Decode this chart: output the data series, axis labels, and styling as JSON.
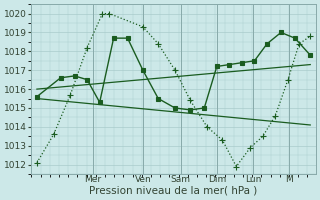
{
  "background_color": "#cce8e8",
  "grid_color": "#aacccc",
  "line_color": "#1a5c20",
  "ylim": [
    1011.5,
    1020.5
  ],
  "yticks": [
    1012,
    1013,
    1014,
    1015,
    1016,
    1017,
    1018,
    1019,
    1020
  ],
  "xlabel": "Pression niveau de la mer( hPa )",
  "xlabel_fontsize": 7.5,
  "tick_fontsize": 6.5,
  "day_labels": [
    "Mer",
    "Ven",
    "Sam",
    "Dim",
    "Lun",
    "M"
  ],
  "day_positions": [
    0.22,
    0.4,
    0.535,
    0.665,
    0.795,
    0.925
  ],
  "series": [
    {
      "x": [
        0.02,
        0.08,
        0.14,
        0.2,
        0.255,
        0.28,
        0.4,
        0.455,
        0.515,
        0.57,
        0.63,
        0.685,
        0.735,
        0.785,
        0.83,
        0.875,
        0.92,
        0.96,
        1.0
      ],
      "y": [
        1012.1,
        1013.6,
        1015.7,
        1018.2,
        1020.0,
        1020.0,
        1019.3,
        1018.4,
        1017.0,
        1015.4,
        1014.0,
        1013.3,
        1011.9,
        1012.9,
        1013.5,
        1014.6,
        1016.5,
        1018.4,
        1018.8
      ],
      "marker": "+",
      "markersize": 4,
      "linewidth": 0.9,
      "linestyle": ":"
    },
    {
      "x": [
        0.02,
        0.105,
        0.155,
        0.2,
        0.245,
        0.295,
        0.345,
        0.4,
        0.455,
        0.515,
        0.57,
        0.62,
        0.665,
        0.71,
        0.755,
        0.8,
        0.845,
        0.895,
        0.945,
        1.0
      ],
      "y": [
        1015.6,
        1016.6,
        1016.7,
        1016.5,
        1015.3,
        1018.7,
        1018.7,
        1017.0,
        1015.5,
        1015.0,
        1014.9,
        1015.0,
        1017.2,
        1017.3,
        1017.4,
        1017.5,
        1018.4,
        1019.0,
        1018.7,
        1017.8
      ],
      "marker": "s",
      "markersize": 2.5,
      "linewidth": 1.0,
      "linestyle": "-"
    },
    {
      "x": [
        0.02,
        1.0
      ],
      "y": [
        1016.0,
        1017.3
      ],
      "marker": null,
      "markersize": 0,
      "linewidth": 0.9,
      "linestyle": "-"
    },
    {
      "x": [
        0.02,
        1.0
      ],
      "y": [
        1015.5,
        1014.1
      ],
      "marker": null,
      "markersize": 0,
      "linewidth": 0.9,
      "linestyle": "-"
    }
  ]
}
